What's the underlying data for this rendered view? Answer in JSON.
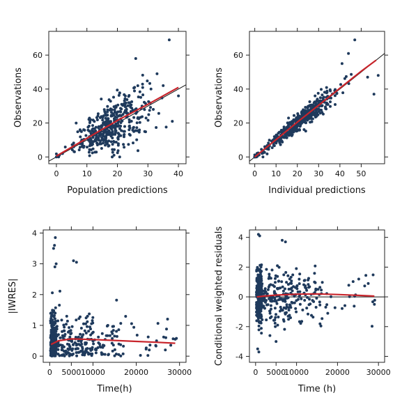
{
  "chart_data": [
    {
      "id": "obs-vs-pred",
      "type": "scatter",
      "xlabel": "Population predictions",
      "ylabel": "Observations",
      "xlim": [
        -2.5,
        42.5
      ],
      "ylim": [
        -4,
        74
      ],
      "xticks": [
        0,
        10,
        20,
        30,
        40
      ],
      "yticks": [
        0,
        20,
        40,
        60
      ],
      "identity_line": true,
      "trend": {
        "x": [
          0,
          10,
          20,
          30,
          40
        ],
        "y": [
          0.5,
          11,
          21.5,
          31,
          41
        ]
      },
      "cloud": {
        "x_center": 18,
        "x_spread": 6,
        "y_slope": 1.0,
        "y_intercept": 0.5,
        "y_noise": 7,
        "n": 420,
        "x_min": 0,
        "x_max": 38
      },
      "points_extra": [
        [
          37,
          69
        ],
        [
          33,
          49
        ],
        [
          38,
          21
        ],
        [
          40,
          36
        ],
        [
          26,
          58
        ],
        [
          31,
          40
        ],
        [
          35,
          42
        ],
        [
          0,
          0
        ],
        [
          1,
          1
        ],
        [
          2,
          2
        ],
        [
          0.5,
          0.5
        ]
      ]
    },
    {
      "id": "obs-vs-ipred",
      "type": "scatter",
      "xlabel": "Individual predictions",
      "ylabel": "Observations",
      "xlim": [
        -2.5,
        61
      ],
      "ylim": [
        -4,
        74
      ],
      "xticks": [
        0,
        10,
        20,
        30,
        40,
        50
      ],
      "yticks": [
        0,
        20,
        40,
        60
      ],
      "identity_line": true,
      "trend": {
        "x": [
          0,
          10,
          20,
          30,
          40,
          50,
          57
        ],
        "y": [
          0,
          10.2,
          20.5,
          30.5,
          40.5,
          50.5,
          57
        ]
      },
      "cloud": {
        "x_center": 20,
        "x_spread": 9,
        "y_slope": 1.0,
        "y_intercept": 0,
        "y_noise": 2.5,
        "n": 480,
        "x_min": 0,
        "x_max": 55
      },
      "points_extra": [
        [
          47,
          69
        ],
        [
          44,
          61
        ],
        [
          56,
          37
        ],
        [
          58,
          48
        ],
        [
          41,
          55
        ],
        [
          53,
          47
        ],
        [
          0,
          0
        ],
        [
          0.5,
          0.5
        ],
        [
          1,
          1
        ]
      ]
    },
    {
      "id": "iwres-vs-time",
      "type": "scatter",
      "xlabel": "Time(h)",
      "ylabel": "|IWRES|",
      "xlim": [
        -1500,
        31500
      ],
      "ylim": [
        -0.2,
        4.1
      ],
      "xticks": [
        0,
        5000,
        10000,
        20000,
        30000
      ],
      "xtick_labels": [
        "0",
        "5000",
        "10000",
        "20000",
        "30000"
      ],
      "yticks": [
        0,
        1,
        2,
        3,
        4
      ],
      "zero_line": false,
      "trend": {
        "x": [
          300,
          2000,
          5000,
          10000,
          15000,
          20000,
          25000,
          29000
        ],
        "y": [
          0.38,
          0.5,
          0.56,
          0.54,
          0.51,
          0.48,
          0.45,
          0.42
        ]
      },
      "cloud": {
        "mode": "abs",
        "n": 520,
        "y_scale": 0.75
      },
      "points_extra": [
        [
          1300,
          3.85
        ],
        [
          1100,
          3.6
        ],
        [
          900,
          3.5
        ],
        [
          1500,
          3.0
        ],
        [
          5500,
          3.1
        ],
        [
          6200,
          3.05
        ],
        [
          1200,
          2.9
        ],
        [
          27000,
          0.88
        ],
        [
          29000,
          0.55
        ],
        [
          24500,
          0.35
        ],
        [
          23000,
          0.2
        ]
      ]
    },
    {
      "id": "cwres-vs-time",
      "type": "scatter",
      "xlabel": "Time (h)",
      "ylabel": "Conditional weighted residuals",
      "xlim": [
        -1500,
        31500
      ],
      "ylim": [
        -4.4,
        4.5
      ],
      "xticks": [
        0,
        5000,
        10000,
        20000,
        30000
      ],
      "xtick_labels": [
        "0",
        "5000",
        "10000",
        "20000",
        "30000"
      ],
      "yticks": [
        -4,
        -2,
        0,
        2,
        4
      ],
      "zero_line": true,
      "trend": {
        "x": [
          300,
          2000,
          5000,
          10000,
          15000,
          20000,
          25000,
          29000
        ],
        "y": [
          0.0,
          0.05,
          0.12,
          0.18,
          0.2,
          0.16,
          0.1,
          0.05
        ]
      },
      "cloud": {
        "mode": "signed",
        "n": 520,
        "y_scale": 0.9
      },
      "points_extra": [
        [
          700,
          4.2
        ],
        [
          1000,
          4.1
        ],
        [
          6500,
          3.8
        ],
        [
          7300,
          3.7
        ],
        [
          27500,
          0.9
        ],
        [
          29000,
          -0.5
        ],
        [
          500,
          -3.5
        ],
        [
          800,
          -3.7
        ],
        [
          5000,
          -3.0
        ],
        [
          3500,
          -2.6
        ]
      ]
    }
  ],
  "colors": {
    "points": "#1f3a5c",
    "trend": "#c8242b",
    "axis": "#222222"
  }
}
